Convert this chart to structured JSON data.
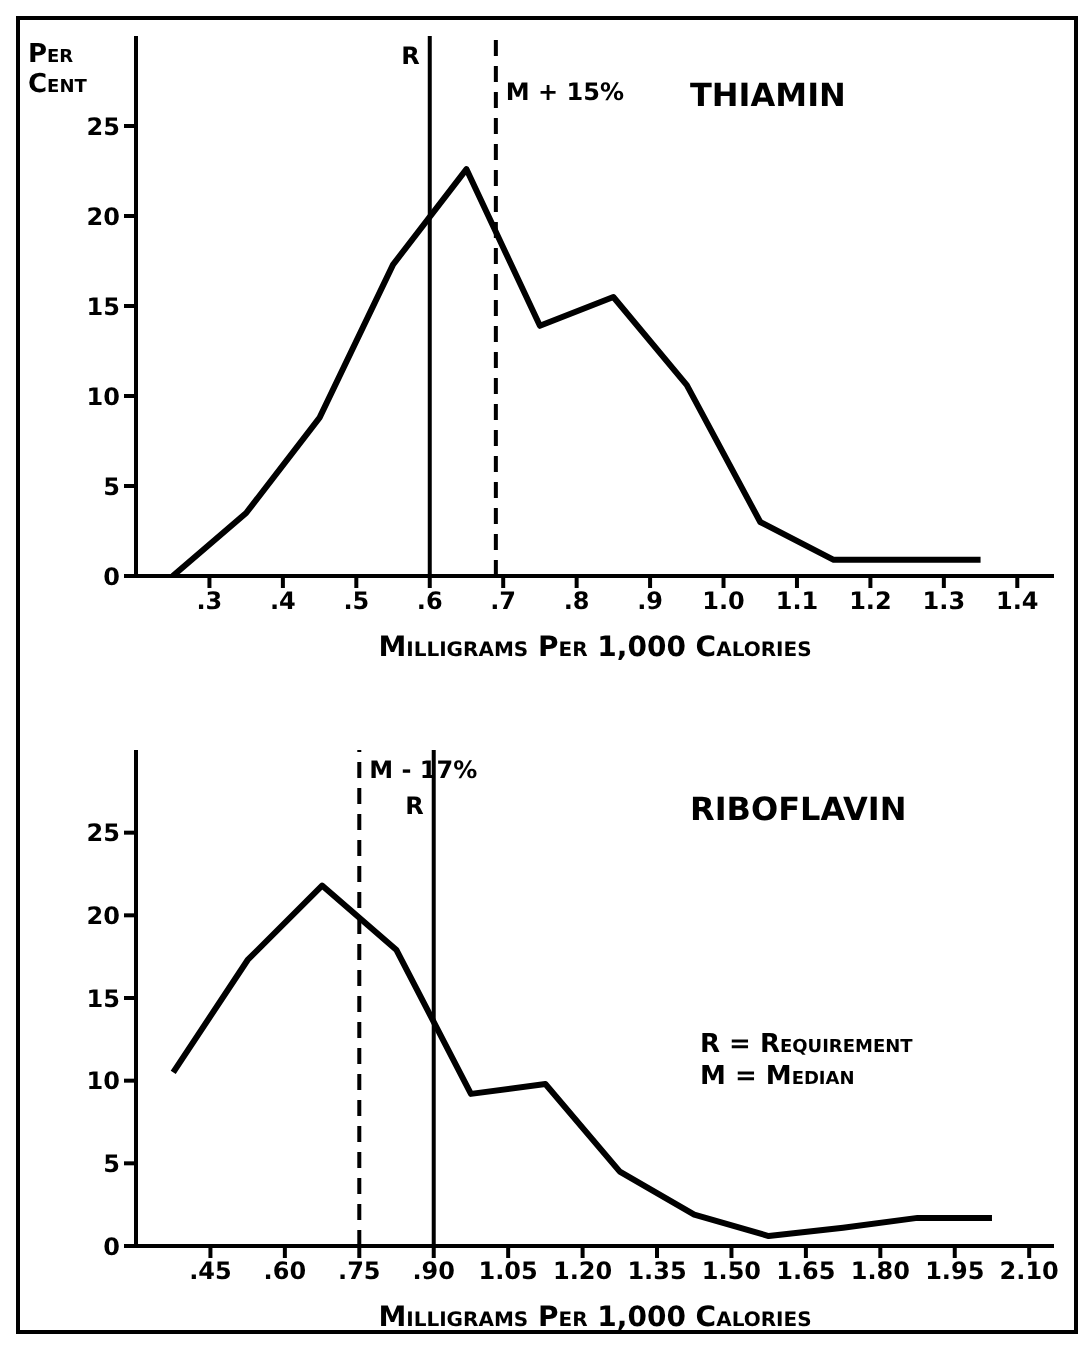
{
  "chart_data": [
    {
      "type": "line",
      "title": "THIAMIN",
      "ylabel": "Per Cent",
      "xlabel": "Milligrams Per 1,000 Calories",
      "x": [
        0.25,
        0.35,
        0.45,
        0.55,
        0.65,
        0.75,
        0.85,
        0.95,
        1.05,
        1.15,
        1.25,
        1.35
      ],
      "series": [
        {
          "color": "#000000",
          "values": [
            0,
            3.5,
            8.8,
            17.3,
            22.6,
            13.9,
            15.5,
            10.6,
            3.0,
            0.9,
            0.9,
            0.9
          ]
        }
      ],
      "xlim": [
        0.2,
        1.45
      ],
      "xticks": [
        {
          "value": 0.3,
          "label": ".3"
        },
        {
          "value": 0.4,
          "label": ".4"
        },
        {
          "value": 0.5,
          "label": ".5"
        },
        {
          "value": 0.6,
          "label": ".6"
        },
        {
          "value": 0.7,
          "label": ".7"
        },
        {
          "value": 0.8,
          "label": ".8"
        },
        {
          "value": 0.9,
          "label": ".9"
        },
        {
          "value": 1,
          "label": "1.0"
        },
        1.1,
        1.2,
        1.3,
        1.4
      ],
      "ylim": [
        0,
        30
      ],
      "yticks": [
        0,
        5,
        10,
        15,
        20,
        25
      ],
      "ref_lines": [
        {
          "axis": "x",
          "value": 0.6,
          "label": "R",
          "line_style": "solid",
          "color": "#000000"
        },
        {
          "axis": "x",
          "value": 0.69,
          "label": "M + 15%",
          "line_style": "dashed",
          "color": "#000000"
        }
      ],
      "marker": "none",
      "line_style": "solid"
    },
    {
      "type": "line",
      "title": "RIBOFLAVIN",
      "xlabel": "Milligrams Per 1,000 Calories",
      "x": [
        0.375,
        0.525,
        0.675,
        0.825,
        0.975,
        1.125,
        1.275,
        1.425,
        1.575,
        1.725,
        1.875,
        2.025
      ],
      "series": [
        {
          "color": "#000000",
          "values": [
            10.5,
            17.3,
            21.8,
            17.9,
            9.2,
            9.8,
            4.5,
            1.9,
            0.6,
            1.1,
            1.7,
            1.7
          ]
        }
      ],
      "xlim": [
        0.3,
        2.15
      ],
      "xticks": [
        {
          "value": 0.45,
          "label": ".45"
        },
        {
          "value": 0.6,
          "label": ".60"
        },
        {
          "value": 0.75,
          "label": ".75"
        },
        {
          "value": 0.9,
          "label": ".90"
        },
        1.05,
        {
          "value": 1.2,
          "label": "1.20"
        },
        1.35,
        {
          "value": 1.5,
          "label": "1.50"
        },
        1.65,
        {
          "value": 1.8,
          "label": "1.80"
        },
        1.95,
        {
          "value": 2.1,
          "label": "2.10"
        }
      ],
      "ylim": [
        0,
        30
      ],
      "yticks": [
        0,
        5,
        10,
        15,
        20,
        25
      ],
      "ref_lines": [
        {
          "axis": "x",
          "value": 0.75,
          "label": "M - 17%",
          "line_style": "dashed",
          "color": "#000000"
        },
        {
          "axis": "x",
          "value": 0.9,
          "label": "R",
          "line_style": "solid",
          "color": "#000000"
        }
      ],
      "annotations": [
        "R = Requirement",
        "M = Median"
      ],
      "marker": "none",
      "line_style": "solid"
    }
  ]
}
